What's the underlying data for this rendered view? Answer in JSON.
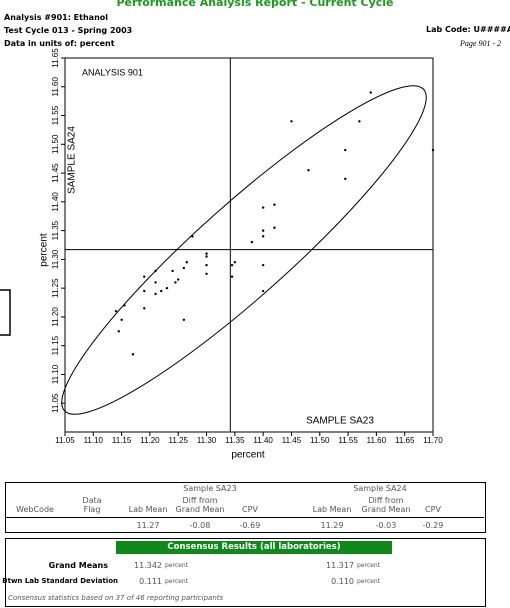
{
  "header": {
    "title": "Performance Analysis Report - Current Cycle",
    "analysis": "Analysis #901: Ethanol",
    "cycle": "Test Cycle 013 - Spring 2003",
    "units": "Data in units of: percent",
    "lab_code": "Lab Code: U####A",
    "page": "Page 901 - 2"
  },
  "chart_data": {
    "type": "scatter",
    "annotation": "ANALYSIS 901",
    "x_label": "percent",
    "y_label": "percent",
    "x_sample_label": "SAMPLE SA23",
    "y_sample_label": "SAMPLE SA24",
    "x": [
      11.14,
      11.155,
      11.15,
      11.145,
      11.17,
      11.19,
      11.19,
      11.19,
      11.21,
      11.21,
      11.21,
      11.22,
      11.23,
      11.24,
      11.245,
      11.25,
      11.26,
      11.265,
      11.26,
      11.275,
      11.3,
      11.3,
      11.3,
      11.3,
      11.345,
      11.35,
      11.345,
      11.38,
      11.4,
      11.4,
      11.4,
      11.4,
      11.42,
      11.42,
      11.4,
      11.45,
      11.48,
      11.545,
      11.545,
      11.57,
      11.59,
      11.7
    ],
    "y": [
      11.21,
      11.22,
      11.195,
      11.175,
      11.135,
      11.245,
      11.27,
      11.215,
      11.26,
      11.28,
      11.24,
      11.245,
      11.25,
      11.28,
      11.26,
      11.265,
      11.285,
      11.295,
      11.195,
      11.34,
      11.31,
      11.29,
      11.275,
      11.305,
      11.29,
      11.295,
      11.27,
      11.33,
      11.29,
      11.34,
      11.35,
      11.39,
      11.395,
      11.355,
      11.245,
      11.54,
      11.455,
      11.44,
      11.49,
      11.54,
      11.59,
      11.49
    ],
    "color": "#000000",
    "xlim": [
      11.05,
      11.7
    ],
    "ylim": [
      11.0,
      11.65
    ],
    "xticks": [
      11.05,
      {
        "value": 11.1,
        "label": "11.10"
      },
      11.15,
      {
        "value": 11.2,
        "label": "11.20"
      },
      11.25,
      {
        "value": 11.3,
        "label": "11.30"
      },
      11.35,
      {
        "value": 11.4,
        "label": "11.40"
      },
      11.45,
      {
        "value": 11.5,
        "label": "11.50"
      },
      11.55,
      {
        "value": 11.6,
        "label": "11.60"
      },
      11.65,
      {
        "value": 11.7,
        "label": "11.70"
      }
    ],
    "yticks": [
      11.05,
      {
        "value": 11.1,
        "label": "11.10"
      },
      11.15,
      {
        "value": 11.2,
        "label": "11.20"
      },
      11.25,
      {
        "value": 11.3,
        "label": "11.30"
      },
      11.35,
      {
        "value": 11.4,
        "label": "11.40"
      },
      11.45,
      {
        "value": 11.5,
        "label": "11.50"
      },
      11.55,
      {
        "value": 11.6,
        "label": "11.60"
      },
      11.65
    ]
  },
  "results_table": {
    "group_headers": [
      "Sample SA23",
      "Sample SA24"
    ],
    "columns": [
      "WebCode",
      "Data Flag",
      "Lab Mean",
      "Diff from Grand Mean",
      "CPV",
      "Lab Mean",
      "Diff from Grand Mean",
      "CPV"
    ],
    "row": [
      11.27,
      -0.08,
      -0.69,
      11.29,
      -0.03,
      -0.29
    ]
  },
  "consensus": {
    "title": "Consensus Results (all laboratories)",
    "unit": "percent",
    "grand_means": {
      "label": "Grand Means",
      "values": [
        11.342,
        11.317
      ]
    },
    "std_dev": {
      "label": "Btwn Lab Standard Deviation",
      "values": [
        "0.111",
        "0.110"
      ]
    },
    "note": "Consensus statistics based on 37 of 46 reporting participants"
  }
}
